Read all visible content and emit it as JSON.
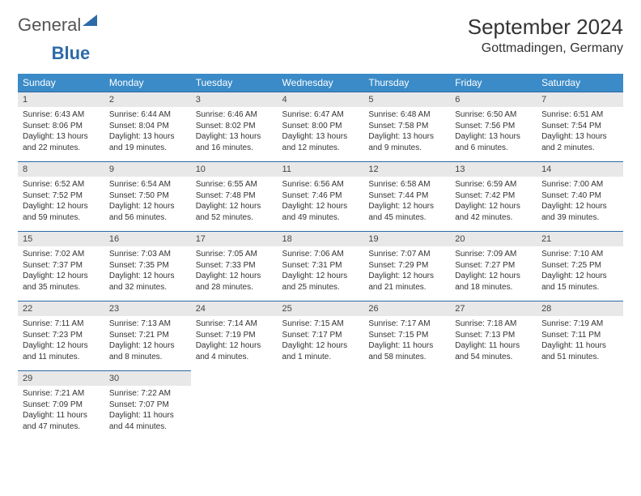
{
  "logo": {
    "part1": "General",
    "part2": "Blue"
  },
  "title": "September 2024",
  "location": "Gottmadingen, Germany",
  "colors": {
    "header_bg": "#3b8bc8",
    "header_text": "#ffffff",
    "daynum_bg": "#e8e8e8",
    "rule": "#2c6aa8",
    "text": "#333333"
  },
  "typography": {
    "title_fontsize": 26,
    "location_fontsize": 16,
    "dow_fontsize": 12,
    "cell_fontsize": 10
  },
  "layout": {
    "columns": 7,
    "rows": 5
  },
  "dow": [
    "Sunday",
    "Monday",
    "Tuesday",
    "Wednesday",
    "Thursday",
    "Friday",
    "Saturday"
  ],
  "weeks": [
    [
      {
        "n": "1",
        "sr": "Sunrise: 6:43 AM",
        "ss": "Sunset: 8:06 PM",
        "d1": "Daylight: 13 hours",
        "d2": "and 22 minutes."
      },
      {
        "n": "2",
        "sr": "Sunrise: 6:44 AM",
        "ss": "Sunset: 8:04 PM",
        "d1": "Daylight: 13 hours",
        "d2": "and 19 minutes."
      },
      {
        "n": "3",
        "sr": "Sunrise: 6:46 AM",
        "ss": "Sunset: 8:02 PM",
        "d1": "Daylight: 13 hours",
        "d2": "and 16 minutes."
      },
      {
        "n": "4",
        "sr": "Sunrise: 6:47 AM",
        "ss": "Sunset: 8:00 PM",
        "d1": "Daylight: 13 hours",
        "d2": "and 12 minutes."
      },
      {
        "n": "5",
        "sr": "Sunrise: 6:48 AM",
        "ss": "Sunset: 7:58 PM",
        "d1": "Daylight: 13 hours",
        "d2": "and 9 minutes."
      },
      {
        "n": "6",
        "sr": "Sunrise: 6:50 AM",
        "ss": "Sunset: 7:56 PM",
        "d1": "Daylight: 13 hours",
        "d2": "and 6 minutes."
      },
      {
        "n": "7",
        "sr": "Sunrise: 6:51 AM",
        "ss": "Sunset: 7:54 PM",
        "d1": "Daylight: 13 hours",
        "d2": "and 2 minutes."
      }
    ],
    [
      {
        "n": "8",
        "sr": "Sunrise: 6:52 AM",
        "ss": "Sunset: 7:52 PM",
        "d1": "Daylight: 12 hours",
        "d2": "and 59 minutes."
      },
      {
        "n": "9",
        "sr": "Sunrise: 6:54 AM",
        "ss": "Sunset: 7:50 PM",
        "d1": "Daylight: 12 hours",
        "d2": "and 56 minutes."
      },
      {
        "n": "10",
        "sr": "Sunrise: 6:55 AM",
        "ss": "Sunset: 7:48 PM",
        "d1": "Daylight: 12 hours",
        "d2": "and 52 minutes."
      },
      {
        "n": "11",
        "sr": "Sunrise: 6:56 AM",
        "ss": "Sunset: 7:46 PM",
        "d1": "Daylight: 12 hours",
        "d2": "and 49 minutes."
      },
      {
        "n": "12",
        "sr": "Sunrise: 6:58 AM",
        "ss": "Sunset: 7:44 PM",
        "d1": "Daylight: 12 hours",
        "d2": "and 45 minutes."
      },
      {
        "n": "13",
        "sr": "Sunrise: 6:59 AM",
        "ss": "Sunset: 7:42 PM",
        "d1": "Daylight: 12 hours",
        "d2": "and 42 minutes."
      },
      {
        "n": "14",
        "sr": "Sunrise: 7:00 AM",
        "ss": "Sunset: 7:40 PM",
        "d1": "Daylight: 12 hours",
        "d2": "and 39 minutes."
      }
    ],
    [
      {
        "n": "15",
        "sr": "Sunrise: 7:02 AM",
        "ss": "Sunset: 7:37 PM",
        "d1": "Daylight: 12 hours",
        "d2": "and 35 minutes."
      },
      {
        "n": "16",
        "sr": "Sunrise: 7:03 AM",
        "ss": "Sunset: 7:35 PM",
        "d1": "Daylight: 12 hours",
        "d2": "and 32 minutes."
      },
      {
        "n": "17",
        "sr": "Sunrise: 7:05 AM",
        "ss": "Sunset: 7:33 PM",
        "d1": "Daylight: 12 hours",
        "d2": "and 28 minutes."
      },
      {
        "n": "18",
        "sr": "Sunrise: 7:06 AM",
        "ss": "Sunset: 7:31 PM",
        "d1": "Daylight: 12 hours",
        "d2": "and 25 minutes."
      },
      {
        "n": "19",
        "sr": "Sunrise: 7:07 AM",
        "ss": "Sunset: 7:29 PM",
        "d1": "Daylight: 12 hours",
        "d2": "and 21 minutes."
      },
      {
        "n": "20",
        "sr": "Sunrise: 7:09 AM",
        "ss": "Sunset: 7:27 PM",
        "d1": "Daylight: 12 hours",
        "d2": "and 18 minutes."
      },
      {
        "n": "21",
        "sr": "Sunrise: 7:10 AM",
        "ss": "Sunset: 7:25 PM",
        "d1": "Daylight: 12 hours",
        "d2": "and 15 minutes."
      }
    ],
    [
      {
        "n": "22",
        "sr": "Sunrise: 7:11 AM",
        "ss": "Sunset: 7:23 PM",
        "d1": "Daylight: 12 hours",
        "d2": "and 11 minutes."
      },
      {
        "n": "23",
        "sr": "Sunrise: 7:13 AM",
        "ss": "Sunset: 7:21 PM",
        "d1": "Daylight: 12 hours",
        "d2": "and 8 minutes."
      },
      {
        "n": "24",
        "sr": "Sunrise: 7:14 AM",
        "ss": "Sunset: 7:19 PM",
        "d1": "Daylight: 12 hours",
        "d2": "and 4 minutes."
      },
      {
        "n": "25",
        "sr": "Sunrise: 7:15 AM",
        "ss": "Sunset: 7:17 PM",
        "d1": "Daylight: 12 hours",
        "d2": "and 1 minute."
      },
      {
        "n": "26",
        "sr": "Sunrise: 7:17 AM",
        "ss": "Sunset: 7:15 PM",
        "d1": "Daylight: 11 hours",
        "d2": "and 58 minutes."
      },
      {
        "n": "27",
        "sr": "Sunrise: 7:18 AM",
        "ss": "Sunset: 7:13 PM",
        "d1": "Daylight: 11 hours",
        "d2": "and 54 minutes."
      },
      {
        "n": "28",
        "sr": "Sunrise: 7:19 AM",
        "ss": "Sunset: 7:11 PM",
        "d1": "Daylight: 11 hours",
        "d2": "and 51 minutes."
      }
    ],
    [
      {
        "n": "29",
        "sr": "Sunrise: 7:21 AM",
        "ss": "Sunset: 7:09 PM",
        "d1": "Daylight: 11 hours",
        "d2": "and 47 minutes."
      },
      {
        "n": "30",
        "sr": "Sunrise: 7:22 AM",
        "ss": "Sunset: 7:07 PM",
        "d1": "Daylight: 11 hours",
        "d2": "and 44 minutes."
      },
      null,
      null,
      null,
      null,
      null
    ]
  ]
}
